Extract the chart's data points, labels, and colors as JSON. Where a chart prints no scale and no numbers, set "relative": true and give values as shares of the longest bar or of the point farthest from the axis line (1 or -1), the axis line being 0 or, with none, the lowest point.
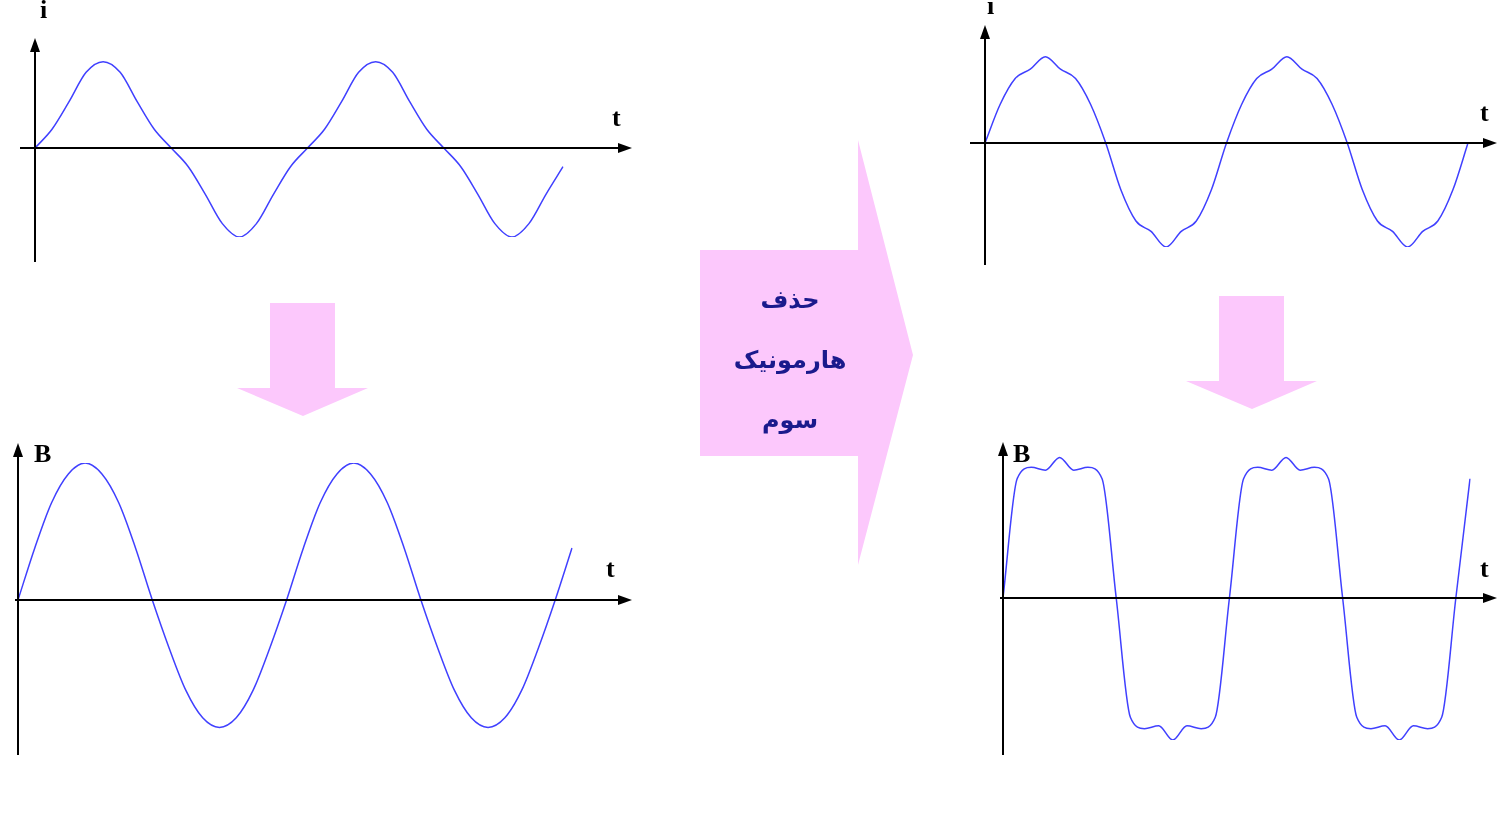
{
  "chart_data": [
    {
      "type": "line",
      "relative": true,
      "xlabel": "t",
      "ylabel": "i",
      "marker": "none",
      "color": "#4040ff",
      "categories": [
        null,
        null,
        null,
        null,
        null,
        null,
        null,
        null,
        null,
        null,
        null,
        null,
        null,
        null,
        null,
        null,
        null,
        null,
        null,
        null,
        null,
        null,
        null,
        null,
        null,
        null,
        null,
        null,
        null,
        null,
        null,
        null
      ],
      "values": [
        0,
        0.21,
        0.52,
        0.85,
        0.97,
        0.85,
        0.52,
        0.21,
        0,
        -0.21,
        -0.52,
        -0.85,
        -1,
        -0.85,
        -0.52,
        -0.21,
        0,
        0.21,
        0.52,
        0.85,
        0.97,
        0.85,
        0.52,
        0.21,
        0,
        -0.21,
        -0.52,
        -0.85,
        -1,
        -0.85,
        -0.52,
        -0.21
      ]
    },
    {
      "type": "line",
      "relative": true,
      "xlabel": "t",
      "ylabel": "i",
      "marker": "none",
      "color": "#4040ff",
      "categories": [
        null,
        null,
        null,
        null,
        null,
        null,
        null,
        null,
        null,
        null,
        null,
        null,
        null,
        null,
        null,
        null,
        null,
        null,
        null,
        null,
        null,
        null,
        null,
        null,
        null,
        null,
        null,
        null,
        null,
        null,
        null,
        null,
        null
      ],
      "values": [
        0,
        0.37,
        0.62,
        0.71,
        0.83,
        0.71,
        0.62,
        0.37,
        0,
        -0.45,
        -0.75,
        -0.85,
        -1,
        -0.85,
        -0.75,
        -0.45,
        0,
        0.37,
        0.62,
        0.71,
        0.83,
        0.71,
        0.62,
        0.37,
        0,
        -0.45,
        -0.75,
        -0.85,
        -1,
        -0.85,
        -0.75,
        -0.45,
        0
      ]
    },
    {
      "type": "line",
      "relative": true,
      "xlabel": "t",
      "ylabel": "B",
      "marker": "none",
      "color": "#4040ff",
      "categories": [
        null,
        null,
        null,
        null,
        null,
        null,
        null,
        null,
        null,
        null,
        null,
        null,
        null,
        null,
        null,
        null,
        null,
        null,
        null,
        null,
        null,
        null,
        null,
        null,
        null,
        null,
        null,
        null,
        null,
        null,
        null,
        null,
        null,
        null
      ],
      "values": [
        0,
        0.38,
        0.71,
        0.92,
        1,
        0.92,
        0.71,
        0.38,
        0,
        -0.35,
        -0.66,
        -0.86,
        -0.93,
        -0.86,
        -0.66,
        -0.35,
        0,
        0.38,
        0.71,
        0.92,
        1,
        0.92,
        0.71,
        0.38,
        0,
        -0.35,
        -0.66,
        -0.86,
        -0.93,
        -0.86,
        -0.66,
        -0.35,
        0,
        0.38
      ]
    },
    {
      "type": "line",
      "relative": true,
      "xlabel": "t",
      "ylabel": "B",
      "marker": "none",
      "color": "#4040ff",
      "categories": [
        null,
        null,
        null,
        null,
        null,
        null,
        null,
        null,
        null,
        null,
        null,
        null,
        null,
        null,
        null,
        null,
        null,
        null,
        null,
        null,
        null,
        null,
        null,
        null,
        null,
        null,
        null,
        null,
        null,
        null,
        null,
        null,
        null,
        null
      ],
      "values": [
        0,
        0.84,
        0.92,
        0.9,
        0.99,
        0.9,
        0.92,
        0.84,
        0,
        -0.84,
        -0.92,
        -0.9,
        -1,
        -0.9,
        -0.92,
        -0.84,
        0,
        0.84,
        0.92,
        0.9,
        0.99,
        0.9,
        0.92,
        0.84,
        0,
        -0.84,
        -0.92,
        -0.9,
        -1,
        -0.9,
        -0.92,
        -0.84,
        0,
        0.84
      ]
    },
    {
      "type": "other",
      "annotations": [
        "حذف هارمونیک سوم"
      ]
    }
  ]
}
